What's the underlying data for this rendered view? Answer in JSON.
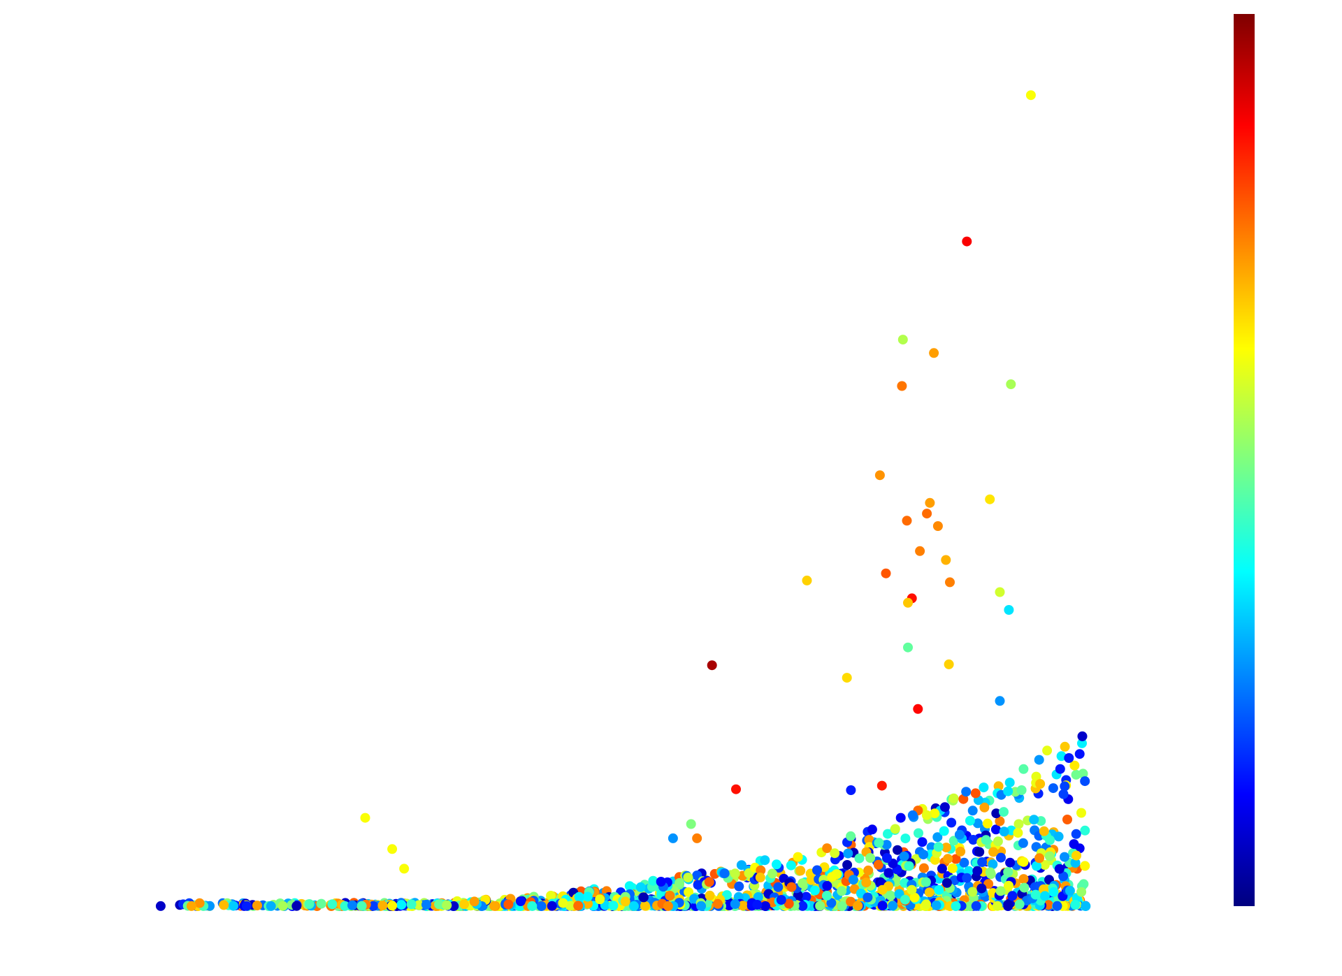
{
  "chart_data": {
    "type": "scatter",
    "title": "",
    "xlabel": "",
    "ylabel": "",
    "xlim": [
      0,
      100
    ],
    "ylim": [
      0,
      100
    ],
    "grid": false,
    "legend": "none",
    "colorbar": {
      "colormap": "jet",
      "range": [
        0,
        1
      ],
      "colors": [
        "#00007f",
        "#0000ff",
        "#007fff",
        "#00ffff",
        "#7fff7f",
        "#ffff00",
        "#ff7f00",
        "#ff0000",
        "#7f0000"
      ]
    },
    "highlighted_points": [
      {
        "x": 89.5,
        "y": 90.9,
        "c": 0.62
      },
      {
        "x": 83.1,
        "y": 74.5,
        "c": 0.88
      },
      {
        "x": 76.7,
        "y": 63.5,
        "c": 0.55
      },
      {
        "x": 79.8,
        "y": 62.0,
        "c": 0.72
      },
      {
        "x": 76.6,
        "y": 58.3,
        "c": 0.76
      },
      {
        "x": 87.5,
        "y": 58.5,
        "c": 0.54
      },
      {
        "x": 74.4,
        "y": 48.3,
        "c": 0.73
      },
      {
        "x": 79.4,
        "y": 45.2,
        "c": 0.72
      },
      {
        "x": 79.1,
        "y": 44.0,
        "c": 0.77
      },
      {
        "x": 77.1,
        "y": 43.2,
        "c": 0.77
      },
      {
        "x": 80.2,
        "y": 42.6,
        "c": 0.74
      },
      {
        "x": 85.4,
        "y": 45.6,
        "c": 0.65
      },
      {
        "x": 78.4,
        "y": 39.8,
        "c": 0.75
      },
      {
        "x": 75.0,
        "y": 37.3,
        "c": 0.79
      },
      {
        "x": 77.6,
        "y": 34.5,
        "c": 0.86
      },
      {
        "x": 77.2,
        "y": 34.0,
        "c": 0.68
      },
      {
        "x": 81.4,
        "y": 36.3,
        "c": 0.75
      },
      {
        "x": 81.0,
        "y": 38.8,
        "c": 0.7
      },
      {
        "x": 86.4,
        "y": 35.2,
        "c": 0.58
      },
      {
        "x": 87.3,
        "y": 33.2,
        "c": 0.35
      },
      {
        "x": 67.1,
        "y": 36.5,
        "c": 0.67
      },
      {
        "x": 57.6,
        "y": 27.0,
        "c": 0.96
      },
      {
        "x": 60.0,
        "y": 13.1,
        "c": 0.86
      },
      {
        "x": 71.1,
        "y": 25.6,
        "c": 0.66
      },
      {
        "x": 78.2,
        "y": 22.1,
        "c": 0.87
      },
      {
        "x": 77.2,
        "y": 29.0,
        "c": 0.47
      },
      {
        "x": 81.3,
        "y": 27.1,
        "c": 0.67
      },
      {
        "x": 71.5,
        "y": 13.0,
        "c": 0.15
      },
      {
        "x": 74.6,
        "y": 13.5,
        "c": 0.85
      },
      {
        "x": 86.4,
        "y": 23.0,
        "c": 0.27
      },
      {
        "x": 91.4,
        "y": 7.4,
        "c": 0.43
      },
      {
        "x": 22.9,
        "y": 9.9,
        "c": 0.62
      },
      {
        "x": 25.6,
        "y": 6.4,
        "c": 0.62
      },
      {
        "x": 26.8,
        "y": 4.2,
        "c": 0.62
      },
      {
        "x": 53.7,
        "y": 7.6,
        "c": 0.27
      },
      {
        "x": 55.5,
        "y": 9.2,
        "c": 0.5
      },
      {
        "x": 56.1,
        "y": 7.6,
        "c": 0.75
      }
    ],
    "background_points": {
      "count": 1500,
      "description_range_x": [
        0,
        95
      ],
      "description_range_y": [
        0,
        20
      ]
    },
    "axis_visible": false
  }
}
